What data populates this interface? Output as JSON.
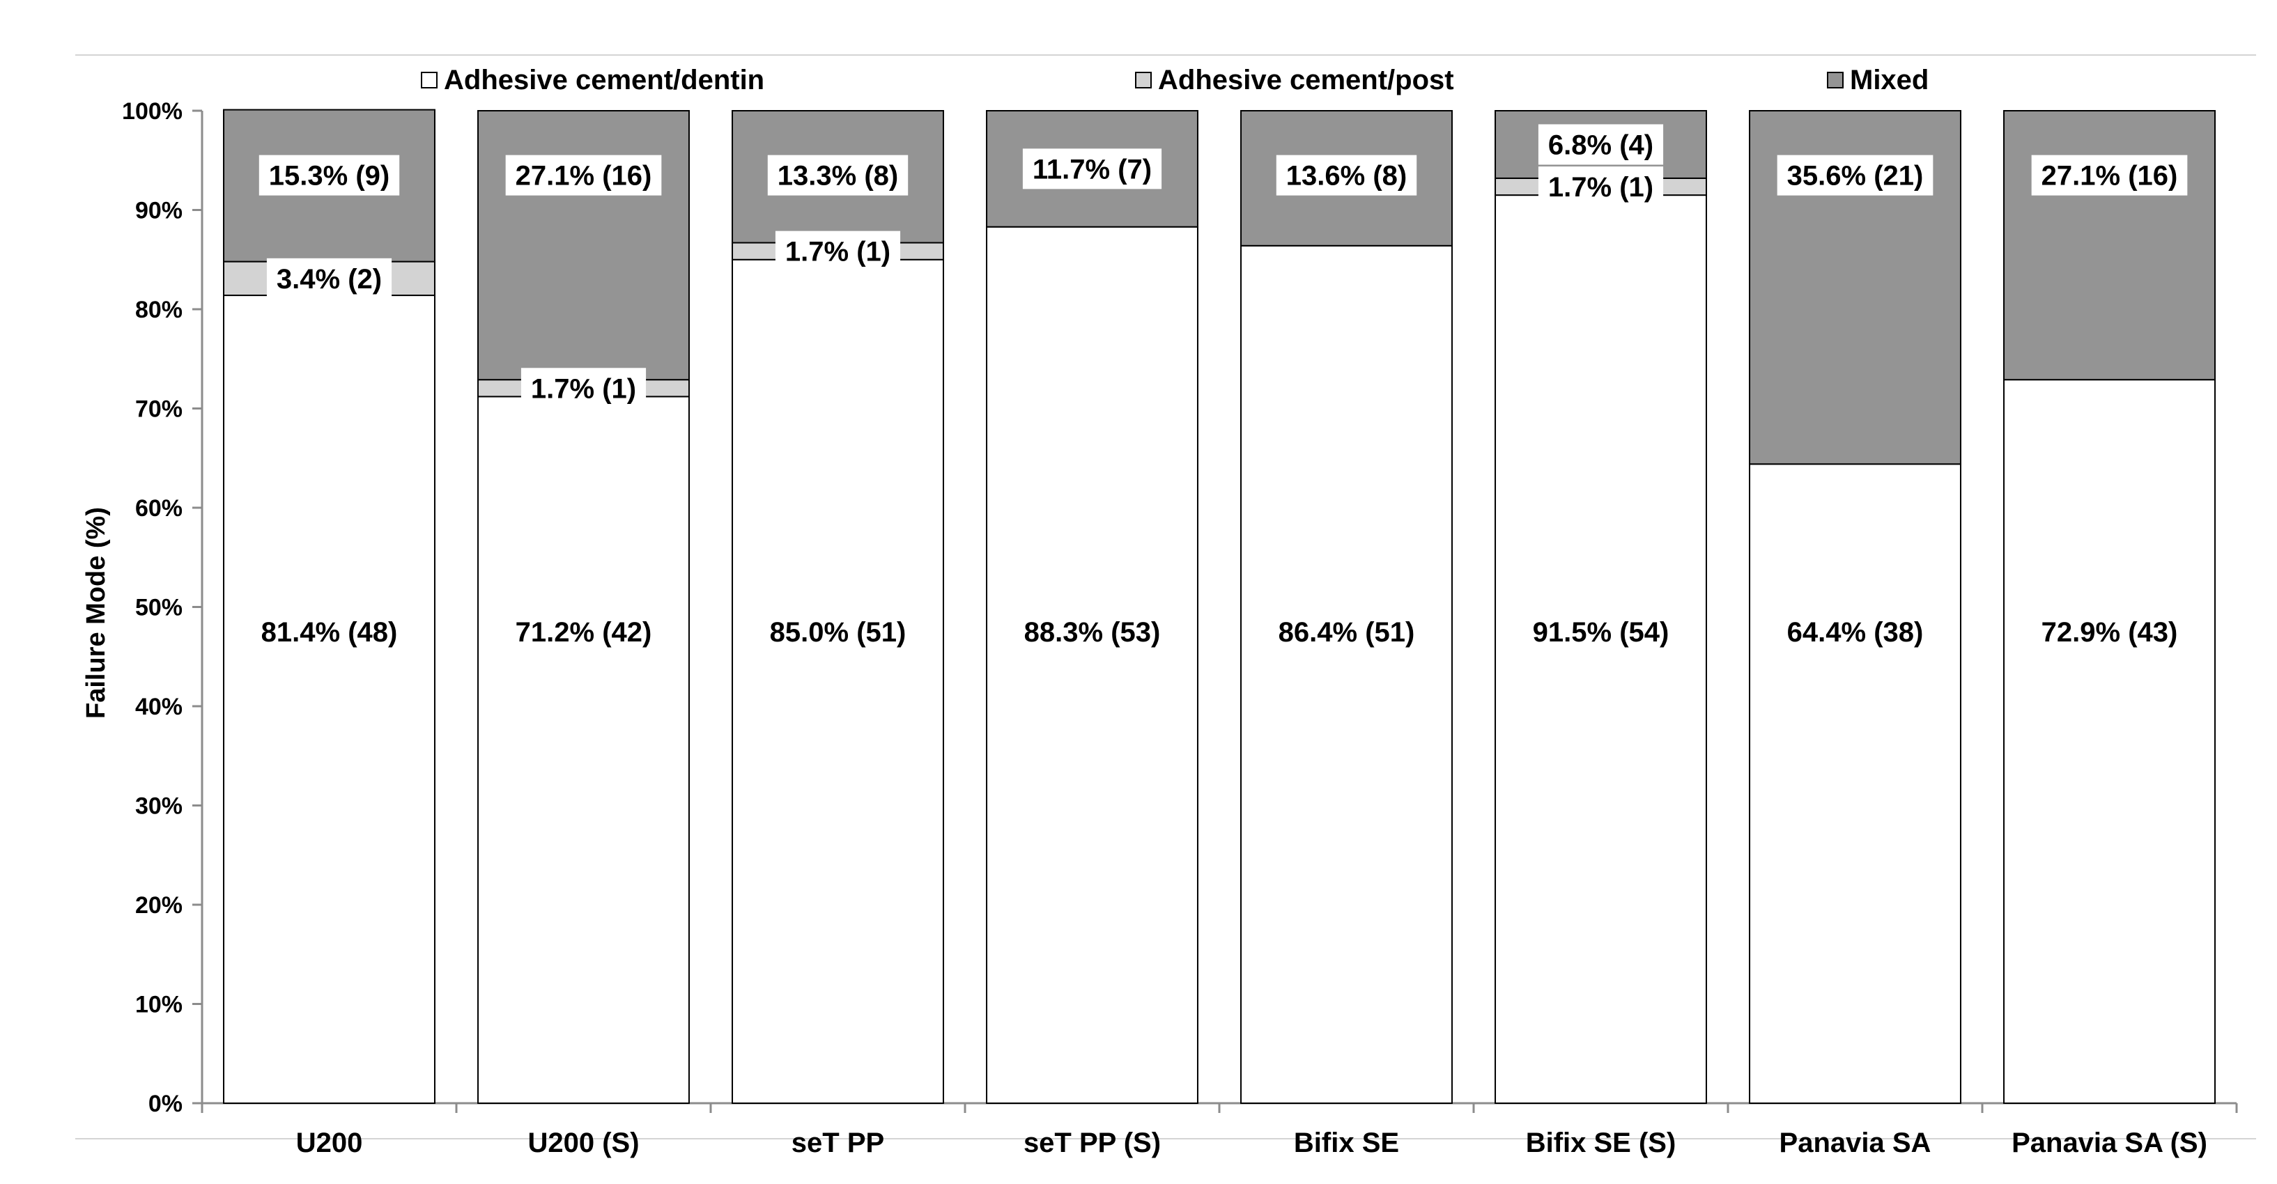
{
  "chart_data": {
    "type": "bar",
    "stacked": true,
    "ylabel": "Failure Mode  (%)",
    "ylim": [
      0,
      100
    ],
    "yticks": [
      "0%",
      "10%",
      "20%",
      "30%",
      "40%",
      "50%",
      "60%",
      "70%",
      "80%",
      "90%",
      "100%"
    ],
    "grid": false,
    "legend_position": "top",
    "categories": [
      "U200",
      "U200 (S)",
      "seT PP",
      "seT PP (S)",
      "Bifix SE",
      "Bifix SE (S)",
      "Panavia SA",
      "Panavia SA (S)"
    ],
    "series": [
      {
        "name": "Adhesive cement/dentin",
        "color": "#ffffff",
        "values": [
          81.4,
          71.2,
          85.0,
          88.3,
          86.4,
          91.5,
          64.4,
          72.9
        ],
        "labels": [
          "81.4% (48)",
          "71.2% (42)",
          "85.0% (51)",
          "88.3% (53)",
          "86.4% (51)",
          "91.5% (54)",
          "64.4% (38)",
          "72.9% (43)"
        ]
      },
      {
        "name": "Adhesive cement/post",
        "color": "#d3d3d3",
        "values": [
          3.4,
          1.7,
          1.7,
          0,
          0,
          1.7,
          0,
          0
        ],
        "labels": [
          "3.4% (2)",
          "1.7% (1)",
          "1.7% (1)",
          "",
          "",
          "1.7% (1)",
          "",
          ""
        ]
      },
      {
        "name": "Mixed",
        "color": "#949494",
        "values": [
          15.3,
          27.1,
          13.3,
          11.7,
          13.6,
          6.8,
          35.6,
          27.1
        ],
        "labels": [
          "15.3% (9)",
          "27.1% (16)",
          "13.3% (8)",
          "11.7% (7)",
          "13.6% (8)",
          "6.8% (4)",
          "35.6% (21)",
          "27.1% (16)"
        ]
      }
    ]
  }
}
